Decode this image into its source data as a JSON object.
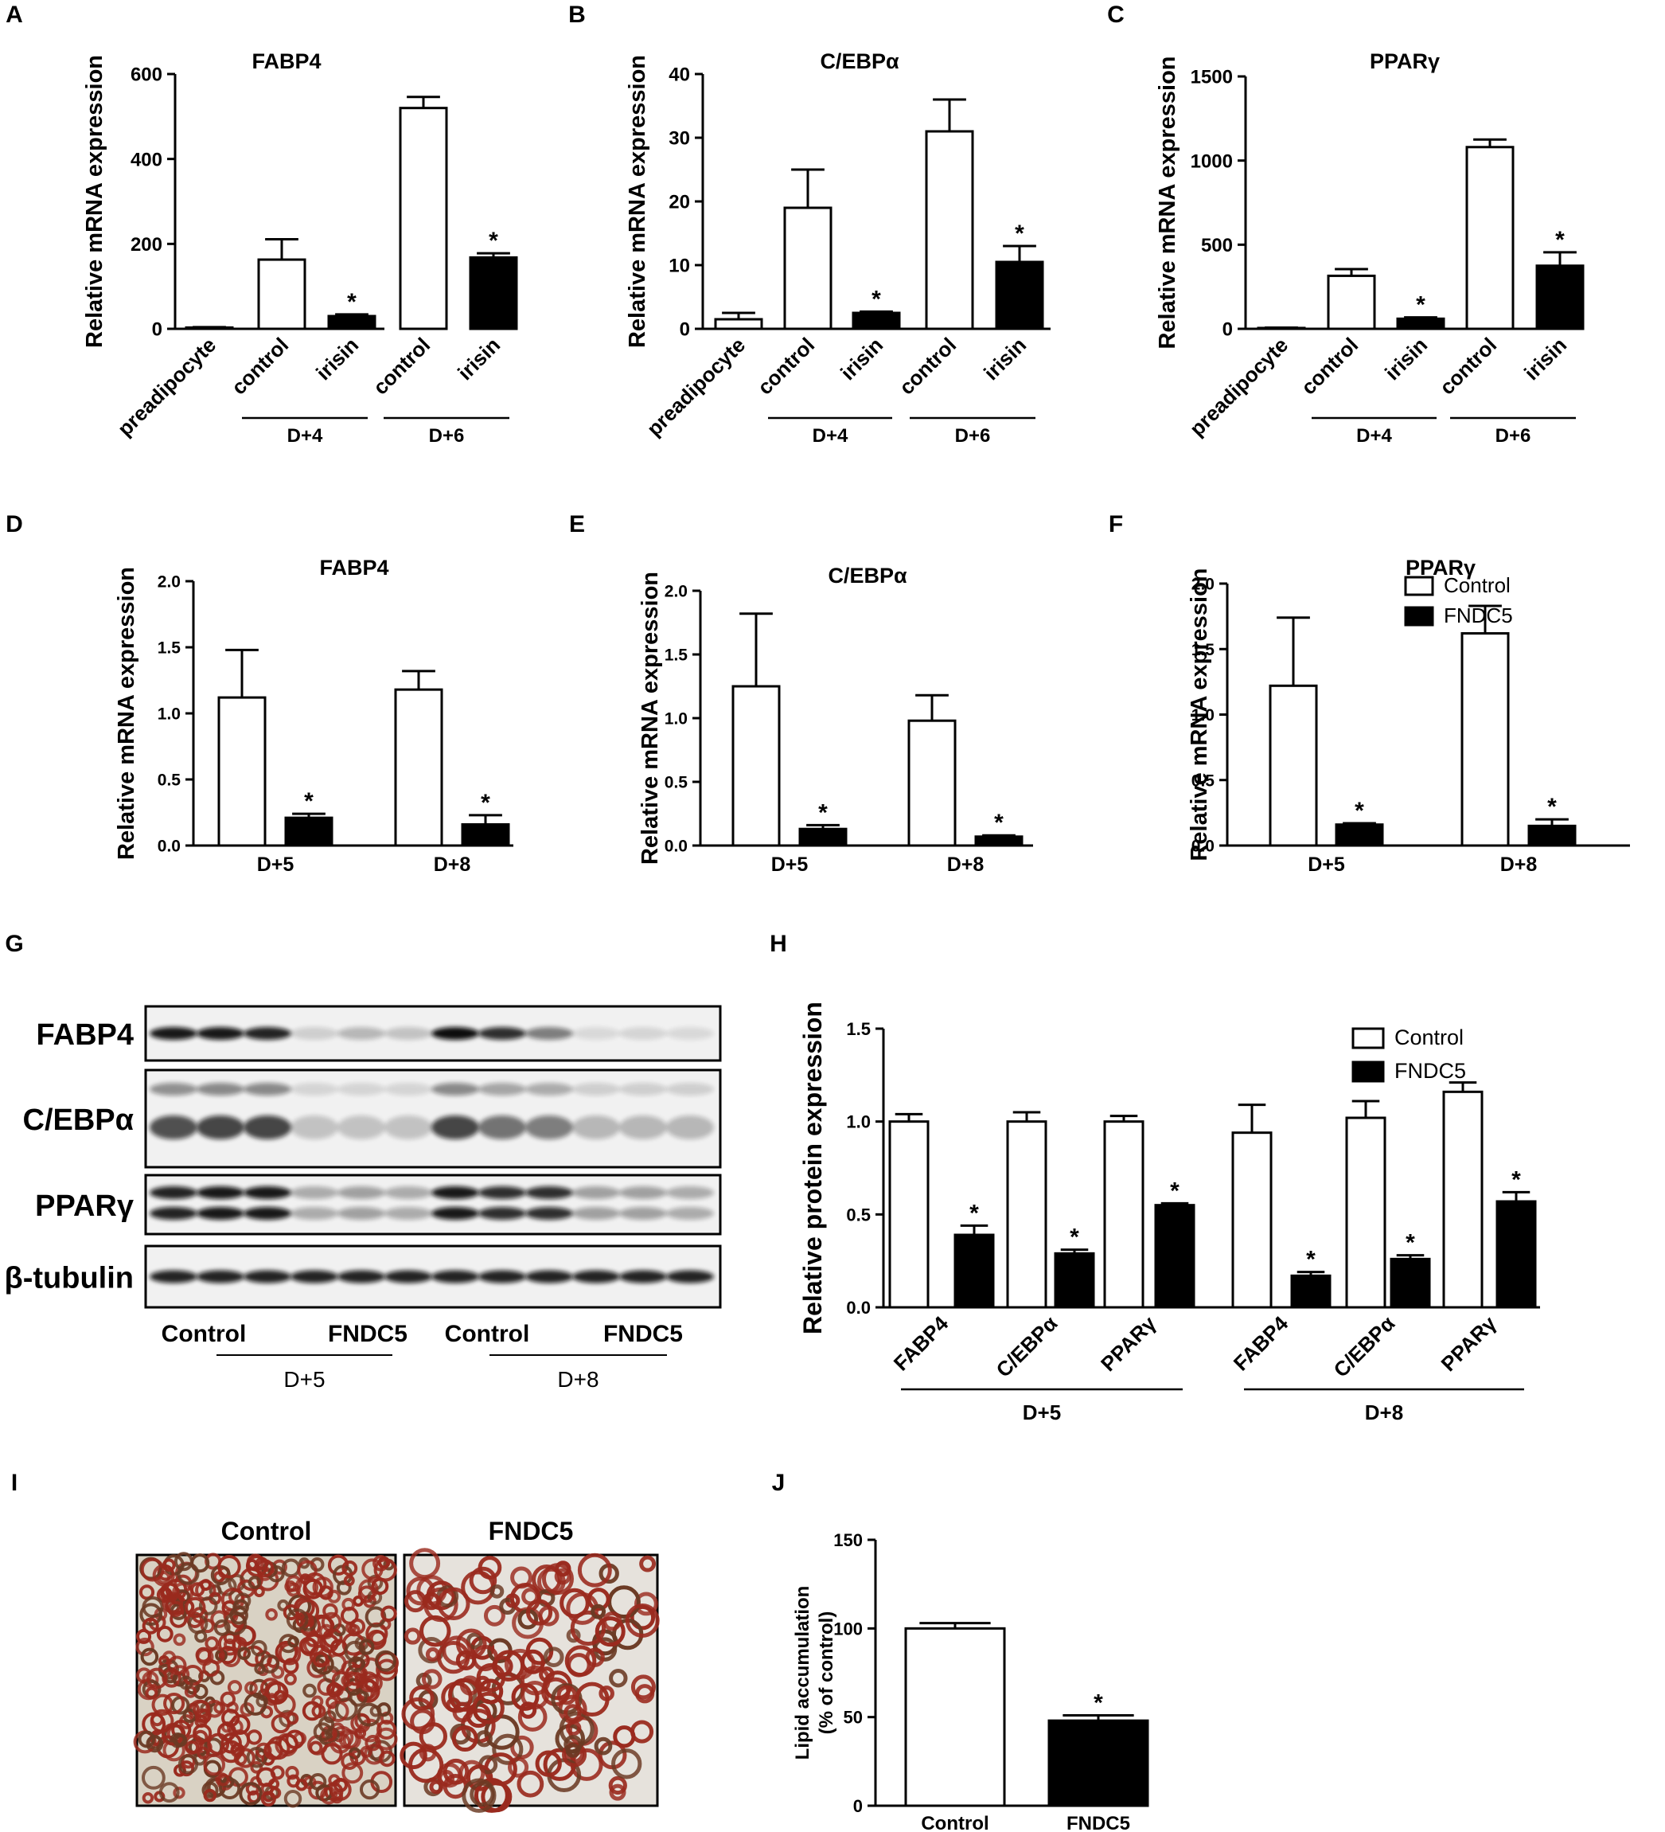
{
  "panel_letters": [
    "A",
    "B",
    "C",
    "D",
    "E",
    "F",
    "G",
    "H",
    "I",
    "J"
  ],
  "legend_labels": [
    "Control",
    "FNDC5"
  ],
  "chart_data": [
    {
      "id": "A",
      "type": "bar",
      "title": "FABP4",
      "ylabel": "Relative mRNA expression",
      "ylim": [
        0,
        600
      ],
      "yticks": [
        "0",
        "200",
        "400",
        "600"
      ],
      "categories": [
        "preadipocyte",
        "control",
        "irisin",
        "control",
        "irisin"
      ],
      "fills": [
        "white",
        "white",
        "black",
        "white",
        "black"
      ],
      "values": [
        3,
        163,
        30,
        520,
        168
      ],
      "errors": [
        1,
        48,
        4,
        26,
        10
      ],
      "significant": [
        false,
        false,
        true,
        false,
        true
      ],
      "groups": [
        {
          "label": "D+4",
          "from": 1,
          "to": 2
        },
        {
          "label": "D+6",
          "from": 3,
          "to": 4
        }
      ]
    },
    {
      "id": "B",
      "type": "bar",
      "title": "C/EBPα",
      "ylabel": "Relative mRNA expression",
      "ylim": [
        0,
        40
      ],
      "yticks": [
        "0",
        "10",
        "20",
        "30",
        "40"
      ],
      "categories": [
        "preadipocyte",
        "control",
        "irisin",
        "control",
        "irisin"
      ],
      "fills": [
        "white",
        "white",
        "black",
        "white",
        "black"
      ],
      "values": [
        1.5,
        19,
        2.5,
        31,
        10.5
      ],
      "errors": [
        1,
        6,
        0.2,
        5,
        2.5
      ],
      "significant": [
        false,
        false,
        true,
        false,
        true
      ],
      "groups": [
        {
          "label": "D+4",
          "from": 1,
          "to": 2
        },
        {
          "label": "D+6",
          "from": 3,
          "to": 4
        }
      ]
    },
    {
      "id": "C",
      "type": "bar",
      "title": "PPARγ",
      "ylabel": "Relative mRNA expression",
      "ylim": [
        0,
        1500
      ],
      "yticks": [
        "0",
        "500",
        "1000",
        "1500"
      ],
      "categories": [
        "preadipocyte",
        "control",
        "irisin",
        "control",
        "irisin"
      ],
      "fills": [
        "white",
        "white",
        "black",
        "white",
        "black"
      ],
      "values": [
        5,
        315,
        60,
        1080,
        375
      ],
      "errors": [
        2,
        40,
        8,
        45,
        80
      ],
      "significant": [
        false,
        false,
        true,
        false,
        true
      ],
      "groups": [
        {
          "label": "D+4",
          "from": 1,
          "to": 2
        },
        {
          "label": "D+6",
          "from": 3,
          "to": 4
        }
      ]
    },
    {
      "id": "D",
      "type": "bar",
      "title": "FABP4",
      "ylabel": "Relative mRNA expression",
      "ylim": [
        0,
        2.0
      ],
      "yticks": [
        "0.0",
        "0.5",
        "1.0",
        "1.5",
        "2.0"
      ],
      "groups": [
        "D+5",
        "D+8"
      ],
      "series": [
        {
          "name": "Control",
          "values": [
            1.12,
            1.18
          ],
          "errors": [
            0.36,
            0.14
          ],
          "significant": [
            false,
            false
          ]
        },
        {
          "name": "FNDC5",
          "values": [
            0.21,
            0.16
          ],
          "errors": [
            0.03,
            0.07
          ],
          "significant": [
            true,
            true
          ]
        }
      ]
    },
    {
      "id": "E",
      "type": "bar",
      "title": "C/EBPα",
      "ylabel": "Relative mRNA expression",
      "ylim": [
        0,
        2.0
      ],
      "yticks": [
        "0.0",
        "0.5",
        "1.0",
        "1.5",
        "2.0"
      ],
      "groups": [
        "D+5",
        "D+8"
      ],
      "series": [
        {
          "name": "Control",
          "values": [
            1.25,
            0.98
          ],
          "errors": [
            0.57,
            0.2
          ],
          "significant": [
            false,
            false
          ]
        },
        {
          "name": "FNDC5",
          "values": [
            0.13,
            0.07
          ],
          "errors": [
            0.03,
            0.01
          ],
          "significant": [
            true,
            true
          ]
        }
      ]
    },
    {
      "id": "F",
      "type": "bar",
      "title": "PPARγ",
      "ylabel": "Relative mRNA expression",
      "ylim": [
        0,
        2.0
      ],
      "yticks": [
        "0.0",
        "0.5",
        "1.0",
        "1.5",
        "2.0"
      ],
      "groups": [
        "D+5",
        "D+8"
      ],
      "series": [
        {
          "name": "Control",
          "values": [
            1.22,
            1.62
          ],
          "errors": [
            0.52,
            0.21
          ],
          "significant": [
            false,
            false
          ]
        },
        {
          "name": "FNDC5",
          "values": [
            0.16,
            0.15
          ],
          "errors": [
            0.01,
            0.05
          ],
          "significant": [
            true,
            true
          ]
        }
      ]
    },
    {
      "id": "H",
      "type": "bar",
      "ylabel": "Relative protein expression",
      "ylim": [
        0,
        1.5
      ],
      "yticks": [
        "0.0",
        "0.5",
        "1.0",
        "1.5"
      ],
      "categories": [
        "FABP4",
        "C/EBPα",
        "PPARγ",
        "FABP4",
        "C/EBPα",
        "PPARγ"
      ],
      "series": [
        {
          "name": "Control",
          "values": [
            1.0,
            1.0,
            1.0,
            0.94,
            1.02,
            1.16
          ],
          "errors": [
            0.04,
            0.05,
            0.03,
            0.15,
            0.09,
            0.05
          ],
          "significant": [
            false,
            false,
            false,
            false,
            false,
            false
          ]
        },
        {
          "name": "FNDC5",
          "values": [
            0.39,
            0.29,
            0.55,
            0.17,
            0.26,
            0.57
          ],
          "errors": [
            0.05,
            0.02,
            0.01,
            0.02,
            0.02,
            0.05
          ],
          "significant": [
            true,
            true,
            true,
            true,
            true,
            true
          ]
        }
      ],
      "groups": [
        {
          "label": "D+5",
          "from": 0,
          "to": 2
        },
        {
          "label": "D+8",
          "from": 3,
          "to": 5
        }
      ]
    },
    {
      "id": "J",
      "type": "bar",
      "ylabel": "Lipid accumulation",
      "ylabel2": "(% of control)",
      "ylim": [
        0,
        150
      ],
      "yticks": [
        "0",
        "50",
        "100",
        "150"
      ],
      "categories": [
        "Control",
        "FNDC5"
      ],
      "fills": [
        "white",
        "black"
      ],
      "values": [
        100,
        48
      ],
      "errors": [
        3,
        3
      ],
      "significant": [
        false,
        true
      ]
    }
  ],
  "blot": {
    "panel": "G",
    "rows": [
      "FABP4",
      "C/EBPα",
      "PPARγ",
      "β-tubulin"
    ],
    "lane_groups": [
      "Control",
      "FNDC5",
      "Control",
      "FNDC5"
    ],
    "timepoints": [
      "D+5",
      "D+8"
    ]
  },
  "micrographs": {
    "panel": "I",
    "labels": [
      "Control",
      "FNDC5"
    ]
  },
  "significance_mark": "*"
}
